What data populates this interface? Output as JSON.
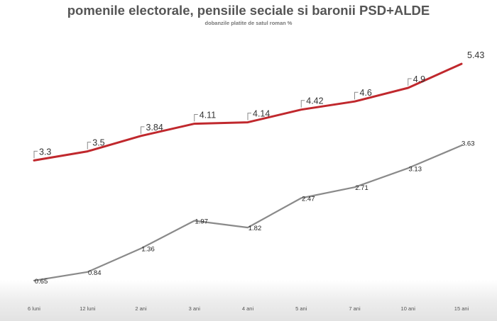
{
  "chart_data": {
    "type": "line",
    "title": "pomenile electorale, pensiile seciale si baronii PSD+ALDE",
    "subtitle": "dobanzile platite de  satul roman %",
    "categories": [
      "6 luni",
      "12 luni",
      "2 ani",
      "3 ani",
      "4 ani",
      "5 ani",
      "7 ani",
      "10 ani",
      "15 ani"
    ],
    "series": [
      {
        "color": "#c0282d",
        "values": [
          3.3,
          3.5,
          3.84,
          4.11,
          4.14,
          4.42,
          4.6,
          4.9,
          5.43
        ]
      },
      {
        "color": "#8a8a8a",
        "values": [
          0.65,
          0.84,
          1.36,
          1.97,
          1.82,
          2.47,
          2.71,
          3.13,
          3.63
        ]
      }
    ],
    "ylim": [
      0.4,
      5.9
    ],
    "grid": false,
    "legend": "none"
  }
}
